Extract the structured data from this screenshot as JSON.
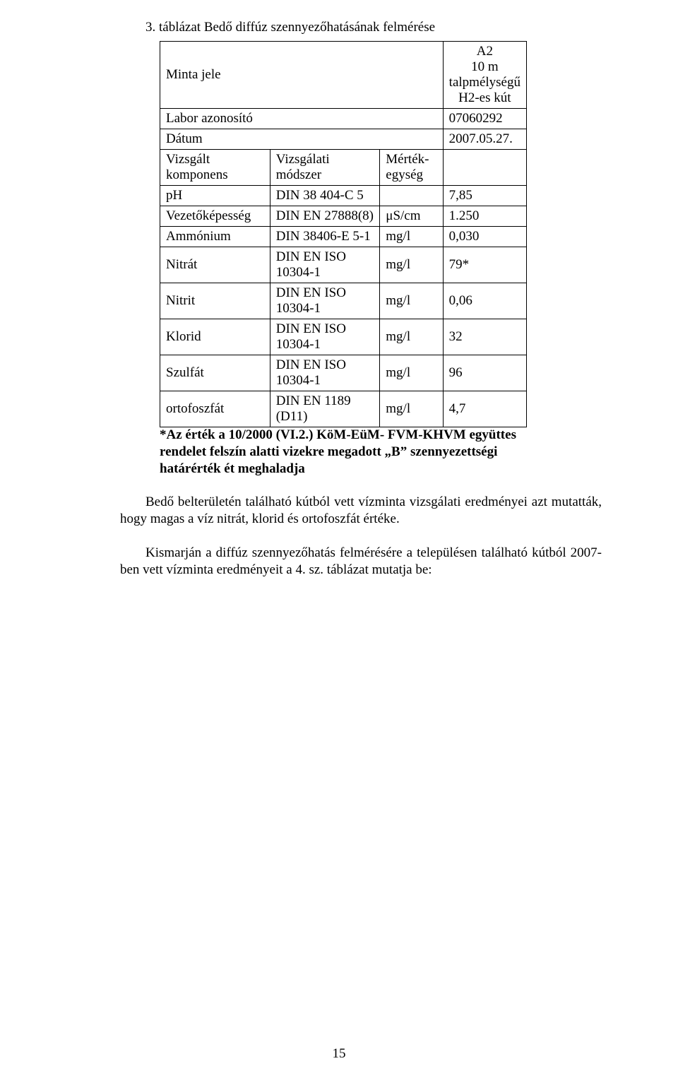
{
  "title": "3. táblázat  Bedő diffúz szennyezőhatásának felmérése",
  "table": {
    "header_rows": [
      {
        "label": "Minta jele",
        "value": "A2\n10 m\ntalpmélységű\nH2-es kút"
      },
      {
        "label_bold": "Labor azonosító",
        "value": "07060292"
      },
      {
        "label_bold": "Dátum",
        "value": "2007.05.27."
      },
      {
        "c0_bold": "Vizsgált komponens",
        "c1_bold": "Vizsgálati módszer",
        "c2_bold": "Mérték-egység",
        "c3": ""
      }
    ],
    "rows": [
      {
        "c0": "pH",
        "c1": "DIN 38 404-C 5",
        "c2": "",
        "c3": "7,85"
      },
      {
        "c0": "Vezetőképesség",
        "c1": "DIN EN 27888(8)",
        "c2": "μS/cm",
        "c3": "1.250"
      },
      {
        "c0": "Ammónium",
        "c1": "DIN 38406-E 5-1",
        "c2": "mg/l",
        "c3": "0,030"
      },
      {
        "c0": "Nitrát",
        "c1": "DIN EN ISO 10304-1",
        "c2": "mg/l",
        "c3": "79*"
      },
      {
        "c0": "Nitrit",
        "c1": "DIN EN ISO 10304-1",
        "c2": "mg/l",
        "c3": "0,06"
      },
      {
        "c0": "Klorid",
        "c1": "DIN EN ISO 10304-1",
        "c2": "mg/l",
        "c3": "32"
      },
      {
        "c0": "Szulfát",
        "c1": "DIN EN ISO 10304-1",
        "c2": "mg/l",
        "c3": "96"
      },
      {
        "c0": "ortofoszfát",
        "c1": "DIN EN 1189 (D11)",
        "c2": "mg/l",
        "c3": "4,7"
      }
    ],
    "col_widths": [
      "160px",
      "170px",
      "92px",
      "98px"
    ]
  },
  "footnote": "*Az érték a 10/2000 (VI.2.) KöM-EüM- FVM-KHVM együttes rendelet felszín alatti vizekre megadott „B” szennyezettségi határérték ét meghaladja",
  "para1": "Bedő belterületén található kútból vett vízminta vizsgálati eredményei azt mutatták, hogy magas a víz nitrát, klorid és ortofoszfát értéke.",
  "para2": "Kismarján a diffúz szennyezőhatás felmérésére a településen található kútból 2007-ben vett vízminta eredményeit a 4. sz. táblázat mutatja be:",
  "pagenum": "15"
}
